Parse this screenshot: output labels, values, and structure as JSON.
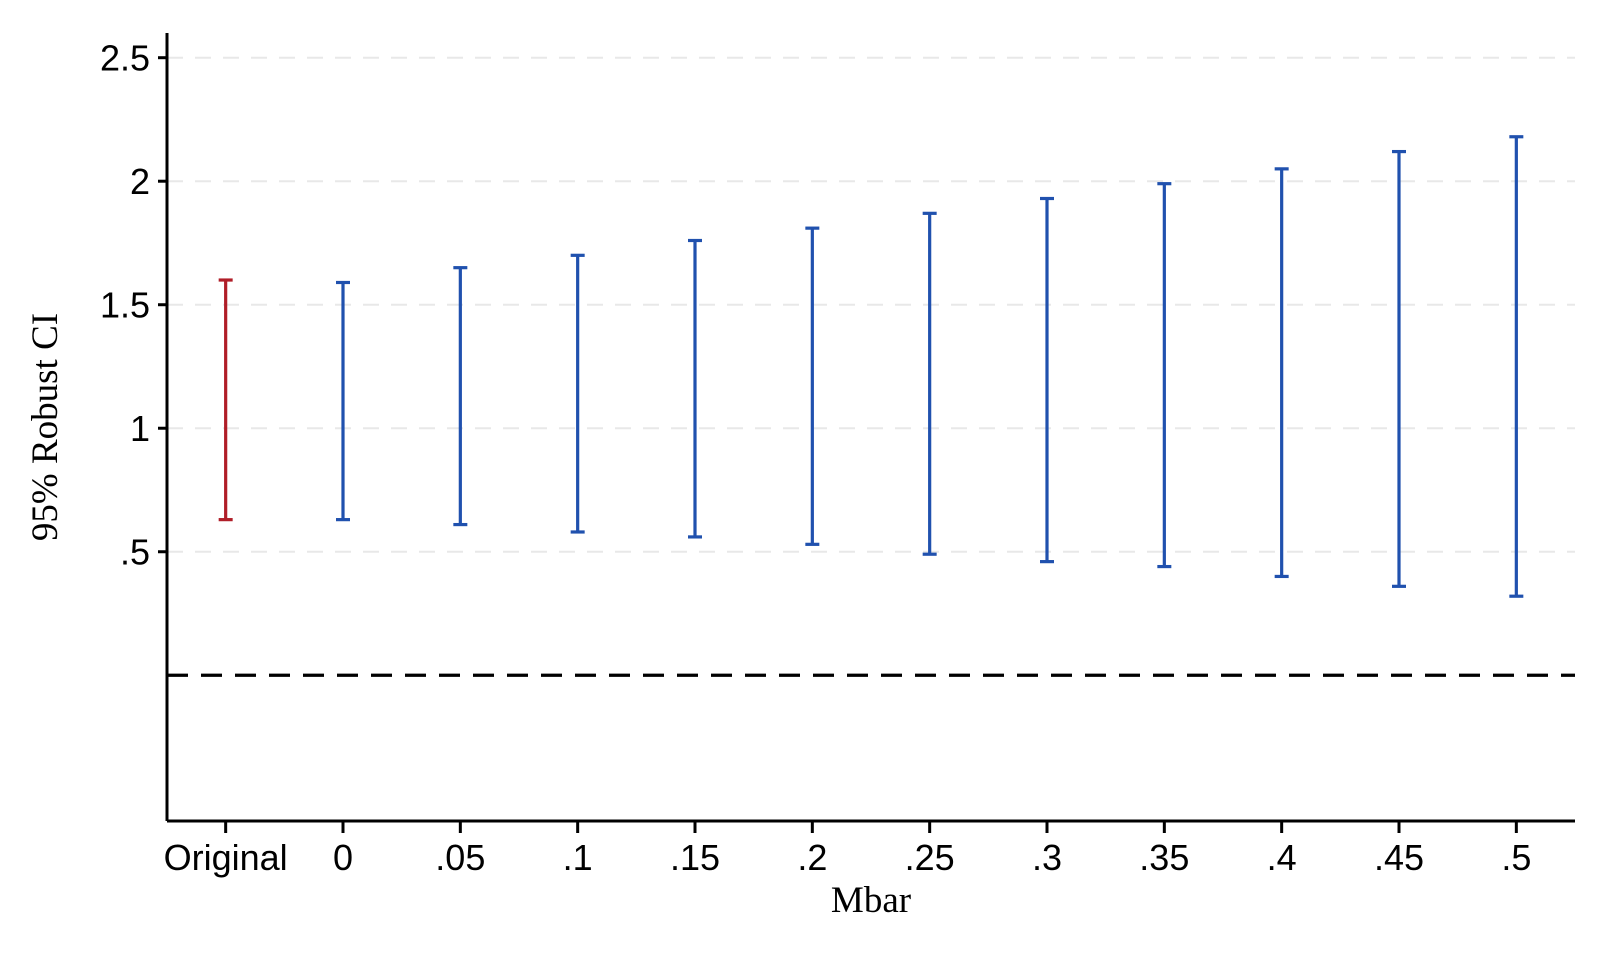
{
  "chart_data": {
    "type": "error-bar",
    "title": "",
    "xlabel": "Mbar",
    "ylabel": "95% Robust CI",
    "categories": [
      "Original",
      "0",
      ".05",
      ".1",
      ".15",
      ".2",
      ".25",
      ".3",
      ".35",
      ".4",
      ".45",
      ".5"
    ],
    "intervals": [
      {
        "label": "Original",
        "low": 0.63,
        "high": 1.6,
        "color": "red"
      },
      {
        "label": "0",
        "low": 0.63,
        "high": 1.59,
        "color": "blue"
      },
      {
        "label": ".05",
        "low": 0.61,
        "high": 1.65,
        "color": "blue"
      },
      {
        "label": ".1",
        "low": 0.58,
        "high": 1.7,
        "color": "blue"
      },
      {
        "label": ".15",
        "low": 0.56,
        "high": 1.76,
        "color": "blue"
      },
      {
        "label": ".2",
        "low": 0.53,
        "high": 1.81,
        "color": "blue"
      },
      {
        "label": ".25",
        "low": 0.49,
        "high": 1.87,
        "color": "blue"
      },
      {
        "label": ".3",
        "low": 0.46,
        "high": 1.93,
        "color": "blue"
      },
      {
        "label": ".35",
        "low": 0.44,
        "high": 1.99,
        "color": "blue"
      },
      {
        "label": ".4",
        "low": 0.4,
        "high": 2.05,
        "color": "blue"
      },
      {
        "label": ".45",
        "low": 0.36,
        "high": 2.12,
        "color": "blue"
      },
      {
        "label": ".5",
        "low": 0.32,
        "high": 2.18,
        "color": "blue"
      }
    ],
    "y_ticks": [
      {
        "value": 2.5,
        "label": "2.5"
      },
      {
        "value": 2.0,
        "label": "2"
      },
      {
        "value": 1.5,
        "label": "1.5"
      },
      {
        "value": 1.0,
        "label": "1"
      },
      {
        "value": 0.5,
        "label": ".5"
      }
    ],
    "gridline_values": [
      0.5,
      1.0,
      1.5,
      2.0,
      2.5
    ],
    "reference_line": {
      "value": 0,
      "style": "dashed",
      "color": "#000000"
    },
    "ylim": [
      -0.59,
      2.6
    ],
    "grid": true,
    "legend": "none",
    "colors": {
      "red": "#b01e28",
      "blue": "#2051ae",
      "gridline": "#e8e8e8",
      "axis": "#000000",
      "background": "#ffffff"
    }
  }
}
